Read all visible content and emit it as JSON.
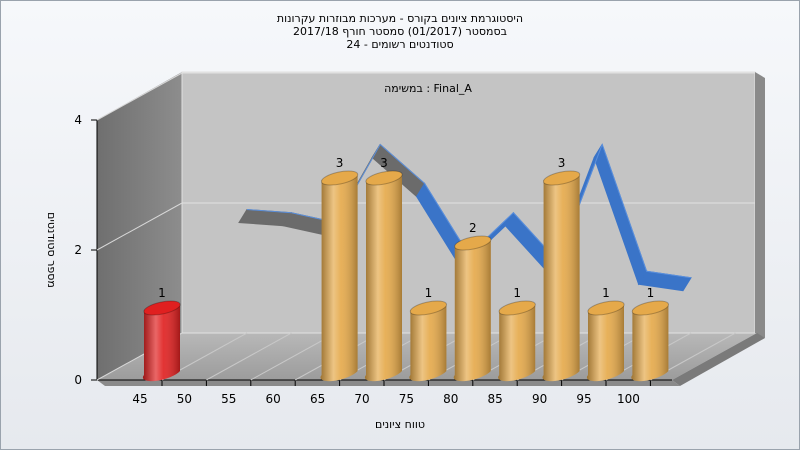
{
  "chart_data": {
    "type": "bar3d",
    "title": [
      "היסטוגרמת ציונים בקורס - מערכות מבוזרות עקרונות",
      "בסמסטר  (01/2017)  סמסטר חורף 2017/18",
      "סטודנטים רשומים - 24"
    ],
    "annotation": "במשימה : Final_A",
    "x_label": "טווח ציונים",
    "y_label": "מספר סטודנטים",
    "categories": [
      "45",
      "50",
      "55",
      "60",
      "65",
      "70",
      "75",
      "80",
      "85",
      "90",
      "95",
      "100"
    ],
    "values": [
      1,
      0,
      0,
      0,
      3,
      3,
      1,
      2,
      1,
      3,
      1,
      1
    ],
    "colors": [
      "#e02020",
      "#e5a94a",
      "#e5a94a",
      "#e5a94a",
      "#e5a94a",
      "#e5a94a",
      "#e5a94a",
      "#e5a94a",
      "#e5a94a",
      "#e5a94a",
      "#e5a94a",
      "#e5a94a"
    ],
    "curve": {
      "values": [
        1.9,
        1.85,
        1.7,
        2.9,
        2.3,
        1.2,
        1.85,
        1.1,
        2.9,
        0.95,
        0.85,
        null
      ],
      "color": "#3a74c8",
      "shade_color": "#6b6b6b"
    },
    "ylim": [
      0,
      4
    ],
    "yticks": [
      0,
      2,
      4
    ],
    "grid": true
  }
}
